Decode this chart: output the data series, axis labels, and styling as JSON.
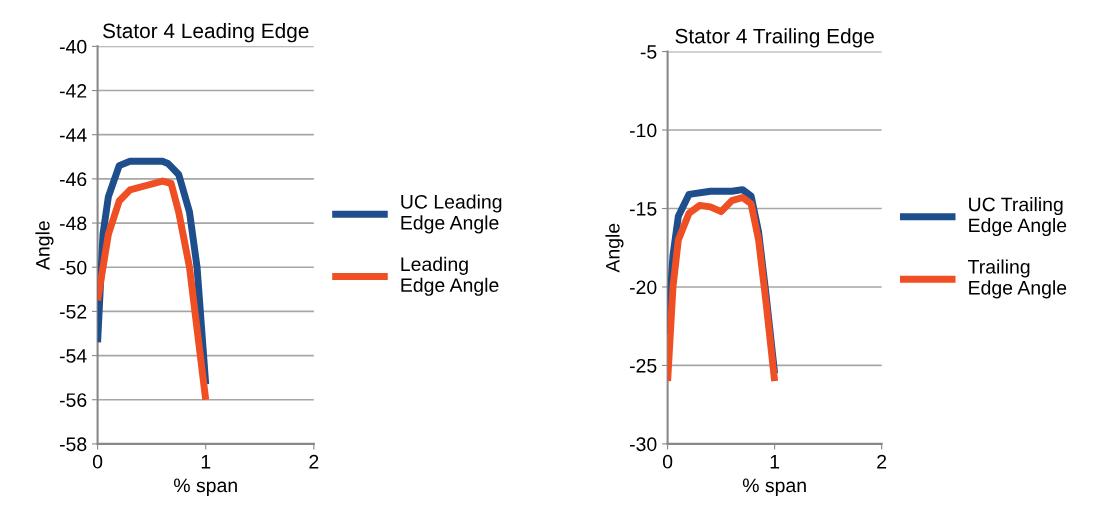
{
  "chart_data": [
    {
      "type": "line",
      "title": "Stator 4 Leading Edge",
      "xlabel": "% span",
      "ylabel": "Angle",
      "xlim": [
        0,
        2
      ],
      "xticks": [
        0,
        1,
        2
      ],
      "ylim": [
        -58,
        -40
      ],
      "yticks": [
        -58,
        -56,
        -54,
        -52,
        -50,
        -48,
        -46,
        -44,
        -42,
        -40
      ],
      "grid": "y",
      "legend": "right",
      "marker": "none",
      "line_style": "solid",
      "series": [
        {
          "name": "UC Leading\nEdge Angle",
          "color": "#1f4e8c",
          "x": [
            0,
            0.05,
            0.1,
            0.2,
            0.3,
            0.4,
            0.5,
            0.6,
            0.65,
            0.75,
            0.85,
            0.92,
            1.0
          ],
          "values": [
            -53.4,
            -48.5,
            -46.8,
            -45.4,
            -45.2,
            -45.2,
            -45.2,
            -45.2,
            -45.3,
            -45.8,
            -47.5,
            -50,
            -55.3
          ]
        },
        {
          "name": "Leading\nEdge Angle",
          "color": "#f04e23",
          "x": [
            0,
            0.1,
            0.2,
            0.3,
            0.45,
            0.6,
            0.68,
            0.75,
            0.85,
            0.95,
            1.0
          ],
          "values": [
            -51.5,
            -48.5,
            -47,
            -46.5,
            -46.3,
            -46.1,
            -46.2,
            -47.5,
            -50,
            -54,
            -56
          ]
        }
      ]
    },
    {
      "type": "line",
      "title": "Stator 4 Trailing Edge",
      "xlabel": "% span",
      "ylabel": "Angle",
      "xlim": [
        0,
        2
      ],
      "xticks": [
        0,
        1,
        2
      ],
      "ylim": [
        -30,
        -5
      ],
      "yticks": [
        -30,
        -25,
        -20,
        -15,
        -10,
        -5
      ],
      "grid": "y",
      "legend": "right",
      "marker": "none",
      "line_style": "solid",
      "series": [
        {
          "name": "UC Trailing\nEdge Angle",
          "color": "#1f4e8c",
          "x": [
            0,
            0.05,
            0.1,
            0.2,
            0.4,
            0.6,
            0.7,
            0.78,
            0.85,
            0.92,
            1.0
          ],
          "values": [
            -23,
            -18,
            -15.5,
            -14.1,
            -13.9,
            -13.9,
            -13.8,
            -14.2,
            -16.5,
            -20.5,
            -25.5
          ]
        },
        {
          "name": "Trailing\nEdge Angle",
          "color": "#f04e23",
          "x": [
            0,
            0.05,
            0.1,
            0.2,
            0.3,
            0.4,
            0.5,
            0.6,
            0.7,
            0.78,
            0.85,
            0.92,
            1.0
          ],
          "values": [
            -26,
            -20,
            -17,
            -15.3,
            -14.8,
            -14.9,
            -15.2,
            -14.5,
            -14.3,
            -14.7,
            -17,
            -21,
            -26
          ]
        }
      ]
    }
  ]
}
